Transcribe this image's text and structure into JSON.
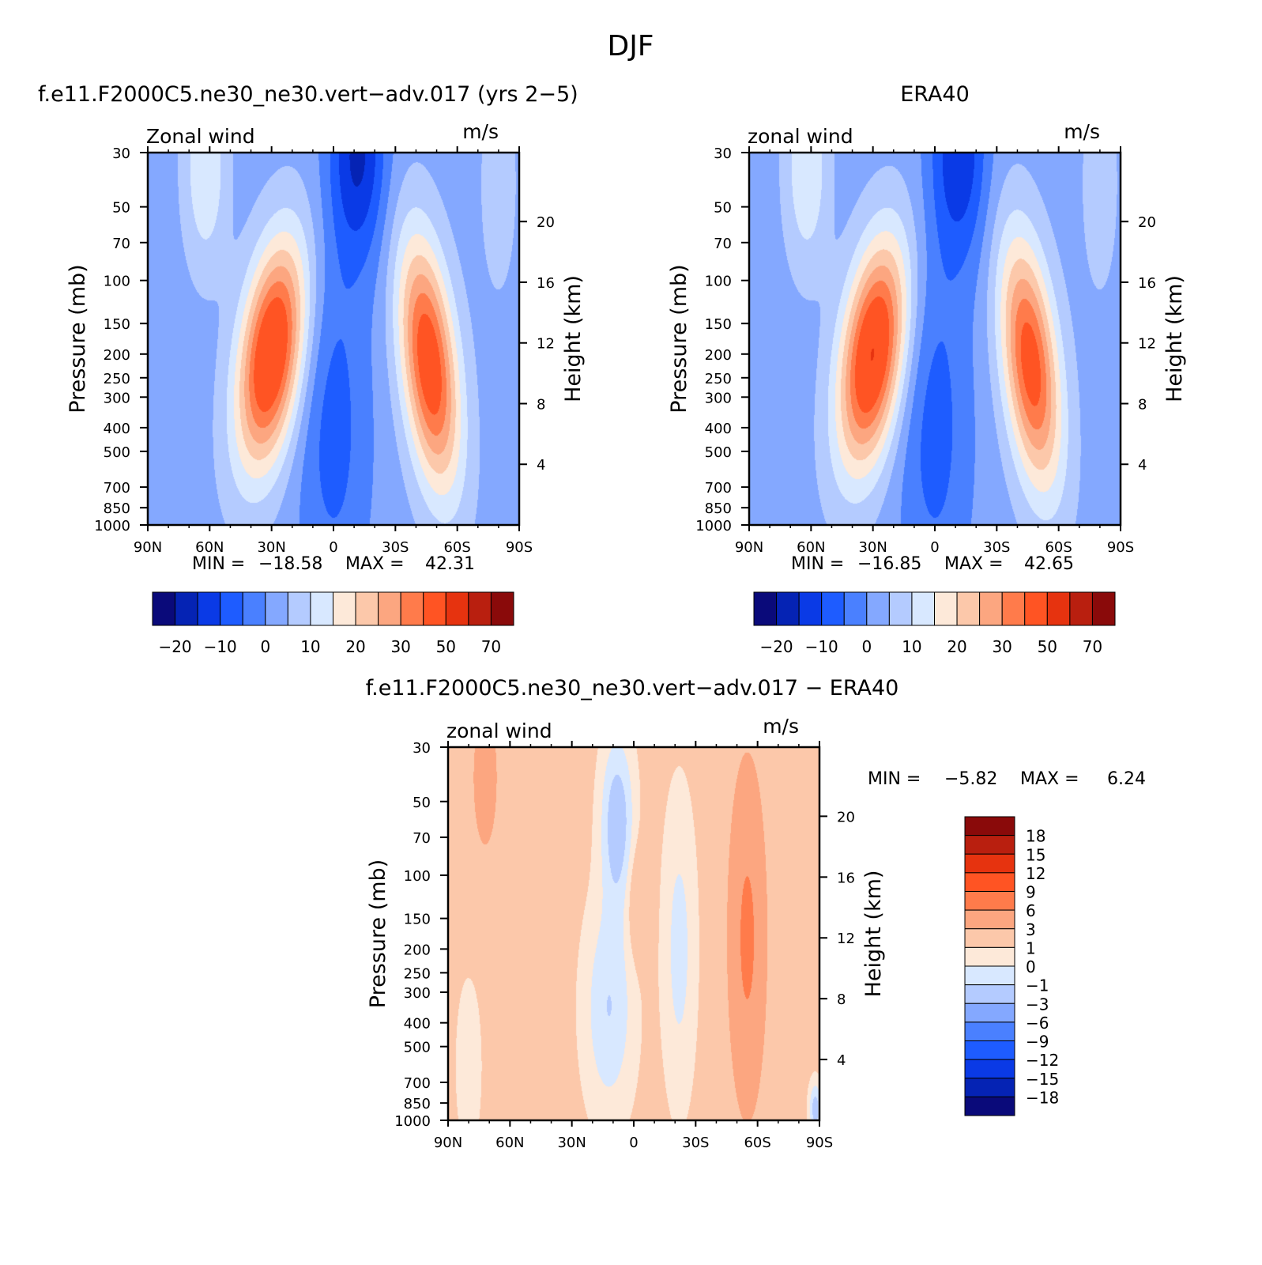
{
  "figure_title": "DJF",
  "chart_data": [
    {
      "type": "heatmap",
      "title": "f.e11.F2000C5.ne30_ne30.vert-adv.017 (yrs 2-5)",
      "left_label": "Zonal wind",
      "right_label": "m/s",
      "ylabel": "Pressure (mb)",
      "ylabel_right": "Height (km)",
      "xticks": [
        "90N",
        "60N",
        "30N",
        "0",
        "30S",
        "60S",
        "90S"
      ],
      "yticks": [
        30,
        50,
        70,
        100,
        150,
        200,
        250,
        300,
        400,
        500,
        700,
        850,
        1000
      ],
      "yticks_right": [
        20,
        16,
        12,
        8,
        4
      ],
      "x": [
        90,
        60,
        30,
        0,
        -30,
        -60,
        -90
      ],
      "ylim": [
        1000,
        30
      ],
      "yscale": "log",
      "min_label": "MIN =",
      "min_value": "-18.58",
      "max_label": "MAX =",
      "max_value": "42.31",
      "colorbar": {
        "orientation": "horizontal",
        "tick_labels": [
          "-20",
          "-10",
          "0",
          "10",
          "20",
          "30",
          "50",
          "70"
        ],
        "colors": [
          "#0a0a7a",
          "#0523b4",
          "#0a3ae6",
          "#1e5cff",
          "#4a80ff",
          "#84a8ff",
          "#b4cbff",
          "#d8e8ff",
          "#fde9d9",
          "#fcc8aa",
          "#fca680",
          "#ff7b4b",
          "#ff5423",
          "#e6330f",
          "#b91f0f",
          "#8a0a0a"
        ]
      },
      "features": [
        {
          "type": "jet",
          "lat": 30,
          "pressure_mb": 200,
          "value": 42.31
        },
        {
          "type": "jet",
          "lat": -45,
          "pressure_mb": 200,
          "value": 38
        },
        {
          "type": "easterly_min",
          "lat": -15,
          "pressure_mb": 30,
          "value": -18.58
        }
      ]
    },
    {
      "type": "heatmap",
      "title": "ERA40",
      "left_label": "zonal wind",
      "right_label": "m/s",
      "ylabel": "Pressure (mb)",
      "ylabel_right": "Height (km)",
      "xticks": [
        "90N",
        "60N",
        "30N",
        "0",
        "30S",
        "60S",
        "90S"
      ],
      "yticks": [
        30,
        50,
        70,
        100,
        150,
        200,
        250,
        300,
        400,
        500,
        700,
        850,
        1000
      ],
      "yticks_right": [
        20,
        16,
        12,
        8,
        4
      ],
      "x": [
        90,
        60,
        30,
        0,
        -30,
        -60,
        -90
      ],
      "ylim": [
        1000,
        30
      ],
      "yscale": "log",
      "min_label": "MIN =",
      "min_value": "-16.85",
      "max_label": "MAX =",
      "max_value": "42.65",
      "colorbar": {
        "orientation": "horizontal",
        "tick_labels": [
          "-20",
          "-10",
          "0",
          "10",
          "20",
          "30",
          "50",
          "70"
        ],
        "colors": [
          "#0a0a7a",
          "#0523b4",
          "#0a3ae6",
          "#1e5cff",
          "#4a80ff",
          "#84a8ff",
          "#b4cbff",
          "#d8e8ff",
          "#fde9d9",
          "#fcc8aa",
          "#fca680",
          "#ff7b4b",
          "#ff5423",
          "#e6330f",
          "#b91f0f",
          "#8a0a0a"
        ]
      },
      "features": [
        {
          "type": "jet",
          "lat": 30,
          "pressure_mb": 200,
          "value": 42.65
        },
        {
          "type": "jet",
          "lat": -45,
          "pressure_mb": 200,
          "value": 36
        },
        {
          "type": "easterly_min",
          "lat": -15,
          "pressure_mb": 30,
          "value": -16.85
        }
      ]
    },
    {
      "type": "heatmap",
      "title": "f.e11.F2000C5.ne30_ne30.vert-adv.017 - ERA40",
      "left_label": "zonal wind",
      "right_label": "m/s",
      "ylabel": "Pressure (mb)",
      "ylabel_right": "Height (km)",
      "xticks": [
        "90N",
        "60N",
        "30N",
        "0",
        "30S",
        "60S",
        "90S"
      ],
      "yticks": [
        30,
        50,
        70,
        100,
        150,
        200,
        250,
        300,
        400,
        500,
        700,
        850,
        1000
      ],
      "yticks_right": [
        20,
        16,
        12,
        8,
        4
      ],
      "x": [
        90,
        60,
        30,
        0,
        -30,
        -60,
        -90
      ],
      "ylim": [
        1000,
        30
      ],
      "yscale": "log",
      "min_label": "MIN =",
      "min_value": "-5.82",
      "max_label": "MAX =",
      "max_value": "6.24",
      "colorbar": {
        "orientation": "vertical",
        "tick_labels": [
          "18",
          "15",
          "12",
          "9",
          "6",
          "3",
          "1",
          "0",
          "-1",
          "-3",
          "-6",
          "-9",
          "-12",
          "-15",
          "-18"
        ],
        "colors": [
          "#8a0a0a",
          "#b91f0f",
          "#e6330f",
          "#ff5423",
          "#ff7b4b",
          "#fca680",
          "#fcc8aa",
          "#fde9d9",
          "#d8e8ff",
          "#b4cbff",
          "#84a8ff",
          "#4a80ff",
          "#1e5cff",
          "#0a3ae6",
          "#0523b4",
          "#0a0a7a"
        ]
      },
      "features": [
        {
          "type": "max",
          "lat": -55,
          "pressure_mb": 200,
          "value": 6.24
        },
        {
          "type": "min",
          "lat": -90,
          "pressure_mb": 850,
          "value": -5.82
        }
      ]
    }
  ]
}
